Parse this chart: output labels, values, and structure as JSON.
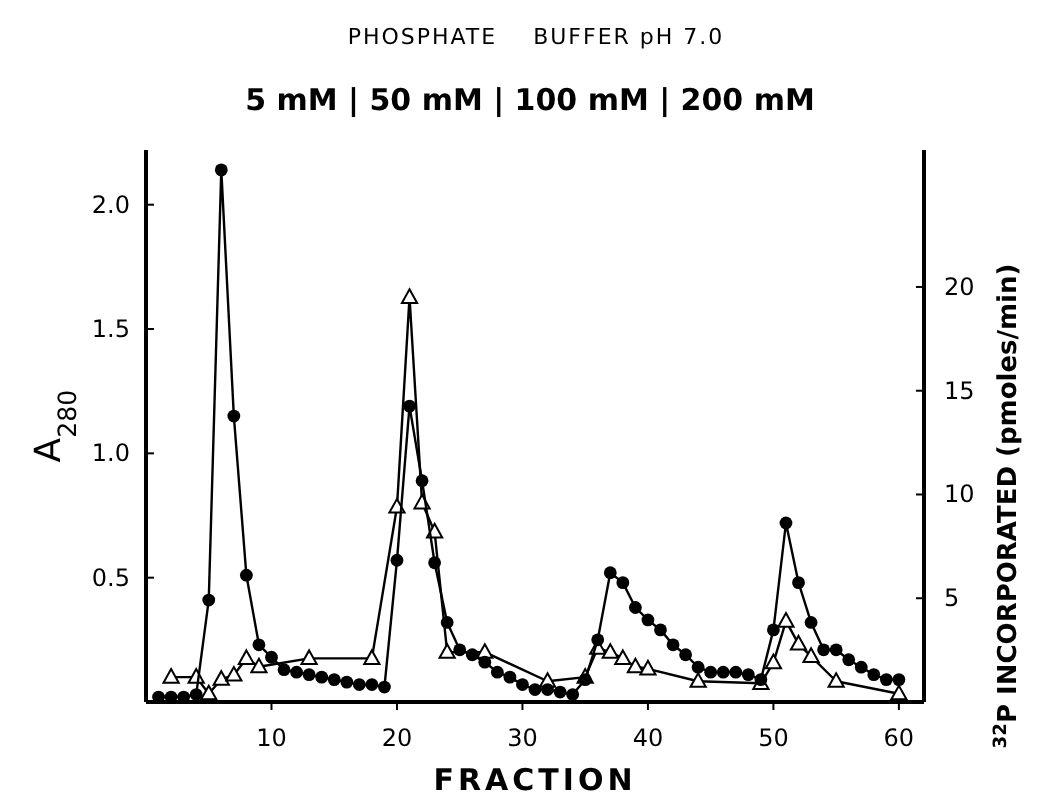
{
  "chart_data": {
    "type": "line",
    "title": "PHOSPHATE    BUFFER pH 7.0",
    "subtitle": "5 mM | 50 mM | 100 mM | 200 mM",
    "xlabel": "FRACTION",
    "ylabel": "A$_{280}$",
    "y2label": "$^{32}$P INCORPORATED (pmoles/min)",
    "x": [
      1,
      2,
      3,
      4,
      5,
      6,
      7,
      8,
      9,
      10,
      11,
      12,
      13,
      14,
      15,
      16,
      17,
      18,
      19,
      20,
      21,
      22,
      23,
      24,
      25,
      26,
      27,
      28,
      29,
      30,
      31,
      32,
      33,
      34,
      35,
      36,
      37,
      38,
      39,
      40,
      41,
      42,
      43,
      44,
      45,
      46,
      47,
      48,
      49,
      50,
      51,
      52,
      53,
      54,
      55,
      56,
      57,
      58,
      59,
      60
    ],
    "series": [
      {
        "color": "#000000",
        "marker": "circle",
        "values": [
          0.02,
          0.02,
          0.02,
          0.03,
          0.41,
          2.14,
          1.15,
          0.51,
          0.23,
          0.18,
          0.13,
          0.12,
          0.11,
          0.1,
          0.09,
          0.08,
          0.07,
          0.07,
          0.06,
          0.57,
          1.19,
          0.89,
          0.56,
          0.32,
          0.21,
          0.19,
          0.16,
          0.12,
          0.1,
          0.07,
          0.05,
          0.05,
          0.04,
          0.03,
          0.09,
          0.25,
          0.52,
          0.48,
          0.38,
          0.33,
          0.29,
          0.23,
          0.19,
          0.14,
          0.12,
          0.12,
          0.12,
          0.11,
          0.09,
          0.29,
          0.72,
          0.48,
          0.32,
          0.21,
          0.21,
          0.17,
          0.14,
          0.11,
          0.09,
          0.09
        ]
      },
      {
        "color": "#000000",
        "marker": "triangle",
        "axis": "y2",
        "x": [
          2,
          4,
          5,
          6,
          7,
          8,
          9,
          13,
          18,
          20,
          21,
          22,
          23,
          24,
          27,
          32,
          35,
          36,
          37,
          38,
          39,
          40,
          44,
          49,
          50,
          51,
          52,
          53,
          55,
          60
        ],
        "values": [
          1.2,
          1.2,
          0.4,
          1.1,
          1.3,
          2.1,
          1.7,
          2.1,
          2.1,
          9.4,
          19.5,
          9.6,
          8.2,
          2.4,
          2.4,
          1.0,
          1.2,
          2.6,
          2.4,
          2.1,
          1.7,
          1.6,
          1.0,
          0.9,
          1.9,
          3.9,
          2.8,
          2.2,
          1.0,
          0.4
        ]
      }
    ],
    "xlim": [
      0,
      62
    ],
    "xticks": [
      10,
      20,
      30,
      40,
      50,
      60
    ],
    "ylim": [
      0,
      2.22
    ],
    "yticks": [
      {
        "value": 0.5,
        "label": "0.5"
      },
      {
        "value": 1,
        "label": "1.0"
      },
      {
        "value": 1.5,
        "label": "1.5"
      },
      {
        "value": 2,
        "label": "2.0"
      }
    ],
    "y2lim": [
      0,
      26.6
    ],
    "y2ticks": [
      5,
      10,
      15,
      20
    ]
  }
}
